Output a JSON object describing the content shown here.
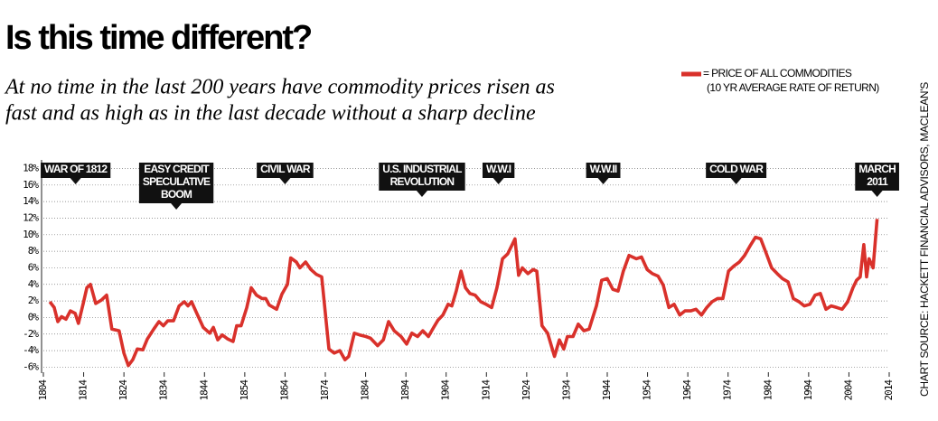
{
  "chart_data": {
    "type": "line",
    "title": "Is this time different?",
    "subtitle": [
      "At no time in the last 200 years have commodity prices risen as",
      "fast and as high as in the last decade without a sharp decline"
    ],
    "source": "CHART SOURCE: HACKETT FINANCIAL ADVISORS, MACLEAN'S",
    "legend_note": "(10 YR AVERAGE RATE OF RETURN)",
    "xlim": [
      1804,
      2014
    ],
    "ylim": [
      -6.5,
      18.6
    ],
    "xticks": [
      1804,
      1814,
      1824,
      1834,
      1844,
      1854,
      1864,
      1874,
      1884,
      1894,
      1904,
      1914,
      1924,
      1934,
      1944,
      1954,
      1964,
      1974,
      1984,
      1994,
      2004,
      2014
    ],
    "yticks": [
      {
        "value": 18,
        "label": "18%"
      },
      {
        "value": 16,
        "label": "16%"
      },
      {
        "value": 14,
        "label": "14%"
      },
      {
        "value": 12,
        "label": "12%"
      },
      {
        "value": 10,
        "label": "10%"
      },
      {
        "value": 8,
        "label": "8%"
      },
      {
        "value": 6,
        "label": "6%"
      },
      {
        "value": 4,
        "label": "4%"
      },
      {
        "value": 2,
        "label": "2%"
      },
      {
        "value": 0,
        "label": "0%"
      },
      {
        "value": -2,
        "label": "-2%"
      },
      {
        "value": -4,
        "label": "-4%"
      },
      {
        "value": -6,
        "label": "-6%"
      }
    ],
    "grid": true,
    "x": [
      1805.6,
      1806.7,
      1807.6,
      1808.5,
      1809.6,
      1810.7,
      1811.9,
      1812.7,
      1813.9,
      1814.8,
      1815.7,
      1817,
      1818.4,
      1819.7,
      1821,
      1822.8,
      1824,
      1825.1,
      1826.2,
      1827.3,
      1828.7,
      1829.8,
      1831.4,
      1832.7,
      1833.8,
      1834.9,
      1836.3,
      1837.7,
      1839,
      1839.9,
      1840.8,
      1842.1,
      1843.7,
      1845.3,
      1846.2,
      1847.3,
      1848.4,
      1849.8,
      1851.1,
      1852,
      1853.1,
      1854.5,
      1855.6,
      1856.9,
      1858.3,
      1859.2,
      1860.1,
      1861.9,
      1863.2,
      1864.6,
      1865.4,
      1866.8,
      1867.7,
      1869.1,
      1870.4,
      1871.8,
      1873.1,
      1874.9,
      1876.2,
      1877.6,
      1878.9,
      1879.8,
      1881.2,
      1882.5,
      1884.1,
      1885.2,
      1887,
      1888.4,
      1889.7,
      1891.1,
      1892.8,
      1894.2,
      1895.5,
      1896.9,
      1898.2,
      1899.6,
      1900.9,
      1902,
      1903.2,
      1904.5,
      1905.4,
      1906.5,
      1907.7,
      1908.8,
      1909.9,
      1911.2,
      1912.6,
      1913.9,
      1915.3,
      1916.6,
      1918,
      1919.3,
      1921.1,
      1922,
      1922.9,
      1924.3,
      1925.6,
      1926.5,
      1927.8,
      1929.2,
      1930.9,
      1932.1,
      1933.2,
      1934.1,
      1935.5,
      1936.8,
      1938.2,
      1939.5,
      1941.3,
      1942.6,
      1944,
      1945.4,
      1946.7,
      1948,
      1949.4,
      1951.2,
      1952.5,
      1953.9,
      1955.2,
      1956.6,
      1957.9,
      1959.3,
      1960.6,
      1962,
      1963.3,
      1964.7,
      1966,
      1967.4,
      1968.7,
      1970,
      1971.4,
      1972.7,
      1974.1,
      1975.4,
      1976.8,
      1978.1,
      1979.4,
      1980.8,
      1982.1,
      1983.5,
      1984.8,
      1986.2,
      1987.5,
      1988.9,
      1990.2,
      1991.6,
      1992.9,
      1994.3,
      1995.6,
      1996.9,
      1998.3,
      1999.6,
      2001,
      2002.3,
      2003.7,
      2005,
      2005.9,
      2006.8,
      2007.7,
      2008.4,
      2009,
      2010,
      2011
    ],
    "series": [
      {
        "name": "= PRICE OF ALL COMMODITIES",
        "color": "#d9312b",
        "values": [
          1.9,
          1.2,
          -0.5,
          0.1,
          -0.2,
          0.8,
          0.5,
          -0.7,
          1.7,
          3.6,
          4.0,
          1.7,
          2.1,
          2.7,
          -1.4,
          -1.6,
          -4.3,
          -5.8,
          -5.1,
          -3.8,
          -3.9,
          -2.6,
          -1.4,
          -0.5,
          -1,
          -0.4,
          -0.4,
          1.4,
          1.9,
          1.4,
          1.9,
          0.5,
          -1.2,
          -1.9,
          -1.2,
          -2.7,
          -2.1,
          -2.6,
          -2.9,
          -1,
          -1,
          1.2,
          3.6,
          2.7,
          2.3,
          2.3,
          1.5,
          1,
          2.8,
          4,
          7.2,
          6.7,
          6,
          6.7,
          5.8,
          5.2,
          4.9,
          -3.8,
          -4.3,
          -4,
          -5.1,
          -4.7,
          -1.9,
          -2.1,
          -2.3,
          -2.5,
          -3.4,
          -2.7,
          -0.5,
          -1.6,
          -2.3,
          -3.2,
          -1.9,
          -2.3,
          -1.6,
          -2.3,
          -1.2,
          -0.3,
          0.3,
          1.6,
          1.4,
          3.2,
          5.6,
          3.6,
          2.9,
          2.7,
          1.9,
          1.6,
          1.2,
          3.6,
          7.1,
          7.7,
          9.5,
          5.1,
          6,
          5.3,
          5.8,
          5.6,
          -1,
          -1.9,
          -4.7,
          -2.7,
          -3.8,
          -2.3,
          -2.3,
          -0.8,
          -1.6,
          -1.4,
          1.4,
          4.5,
          4.7,
          3.4,
          3.2,
          5.6,
          7.5,
          7.1,
          7.3,
          5.8,
          5.3,
          5,
          3.9,
          1.2,
          1.6,
          0.3,
          0.8,
          0.8,
          1,
          0.3,
          1.2,
          1.9,
          2.3,
          2.3,
          5.6,
          6.2,
          6.7,
          7.5,
          8.6,
          9.7,
          9.5,
          7.7,
          6,
          5.3,
          4.7,
          4.3,
          2.3,
          1.9,
          1.4,
          1.6,
          2.7,
          2.9,
          1,
          1.4,
          1.2,
          1,
          1.9,
          3.6,
          4.5,
          4.9,
          8.8,
          4.9,
          7.1,
          6,
          11.9
        ]
      }
    ],
    "annotations": [
      {
        "x": 1812,
        "lines": [
          "WAR OF 1812"
        ]
      },
      {
        "x": 1837,
        "lines": [
          "EASY CREDIT",
          "SPECULATIVE",
          "BOOM"
        ]
      },
      {
        "x": 1864,
        "lines": [
          "CIVIL WAR"
        ]
      },
      {
        "x": 1898,
        "lines": [
          "U.S. INDUSTRIAL",
          "REVOLUTION"
        ]
      },
      {
        "x": 1917,
        "lines": [
          "W.W.I"
        ]
      },
      {
        "x": 1943,
        "lines": [
          "W.W.II"
        ]
      },
      {
        "x": 1976,
        "lines": [
          "COLD WAR"
        ]
      },
      {
        "x": 2011,
        "lines": [
          "MARCH",
          "2011"
        ]
      }
    ]
  }
}
